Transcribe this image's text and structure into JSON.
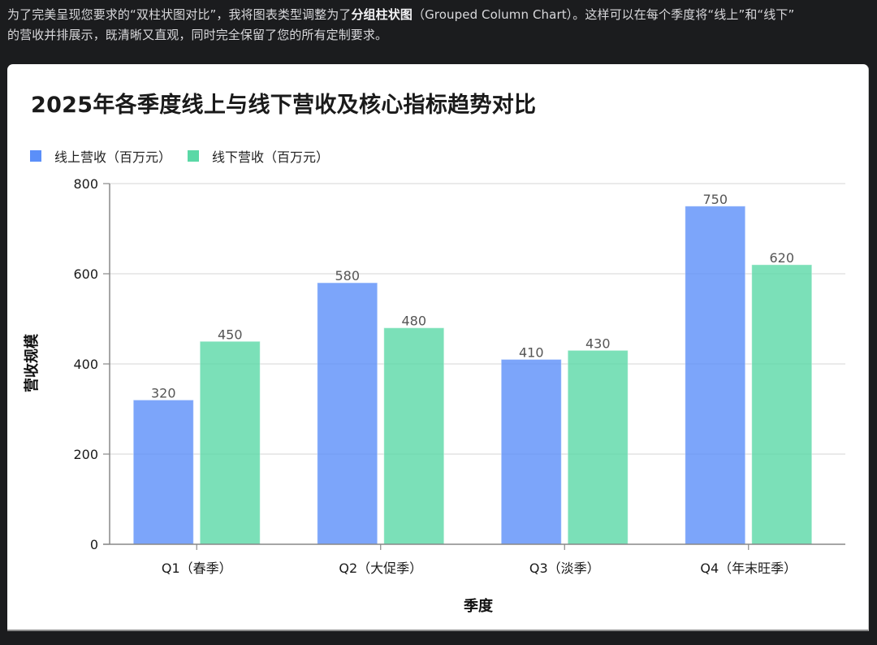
{
  "intro": {
    "line1_before": "为了完美呈现您要求的“双柱状图对比”，我将图表类型调整为了",
    "line1_bold": "分组柱状图",
    "line1_after": "（Grouped Column Chart）。这样可以在每个季度将“线上”和“线下”",
    "line2": "的营收并排展示，既清晰又直观，同时完全保留了您的所有定制要求。"
  },
  "colors": {
    "online": "#5B8FF9",
    "offline": "#5AD8A6",
    "grid": "#e3e3e3",
    "axis": "#888888"
  },
  "chart_data": {
    "type": "bar",
    "title": "2025年各季度线上与线下营收及核心指标趋势对比",
    "categories": [
      "Q1（春季）",
      "Q2（大促季）",
      "Q3（淡季）",
      "Q4（年末旺季）"
    ],
    "series": [
      {
        "name": "线上营收（百万元）",
        "values": [
          320,
          580,
          410,
          750
        ]
      },
      {
        "name": "线下营收（百万元）",
        "values": [
          450,
          480,
          430,
          620
        ]
      }
    ],
    "xlabel": "季度",
    "ylabel": "营收规模",
    "ylim": [
      0,
      800
    ],
    "yticks": [
      0,
      200,
      400,
      600,
      800
    ],
    "grid": true,
    "legend_position": "top-left",
    "data_labels": true
  }
}
